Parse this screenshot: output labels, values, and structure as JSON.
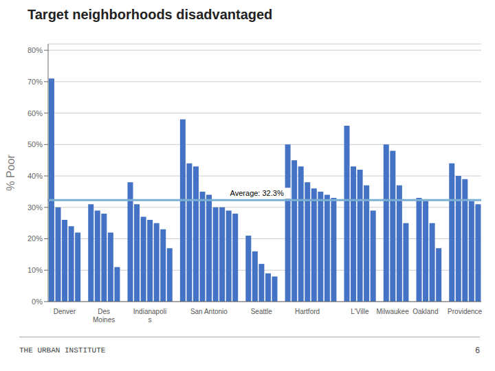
{
  "chart_data": {
    "type": "bar",
    "title": "Target neighborhoods disadvantaged",
    "ylabel": "% Poor",
    "color": "#4472C4",
    "grid": true,
    "ylim": [
      0,
      82
    ],
    "yticks": [
      {
        "value": 0,
        "label": "0%"
      },
      {
        "value": 10,
        "label": "10%"
      },
      {
        "value": 20,
        "label": "20%"
      },
      {
        "value": 30,
        "label": "30%"
      },
      {
        "value": 40,
        "label": "40%"
      },
      {
        "value": 50,
        "label": "50%"
      },
      {
        "value": 60,
        "label": "60%"
      },
      {
        "value": 70,
        "label": "70%"
      },
      {
        "value": 80,
        "label": "80%"
      }
    ],
    "categories": [
      null,
      null,
      "Denver",
      null,
      null,
      null,
      null,
      null,
      "Des\nMoines",
      null,
      null,
      null,
      null,
      null,
      null,
      "Indianapoli\ns",
      null,
      null,
      null,
      null,
      null,
      null,
      null,
      null,
      "San Antonio",
      null,
      null,
      null,
      null,
      null,
      null,
      null,
      "Seattle",
      null,
      null,
      null,
      null,
      null,
      null,
      "Hartford",
      null,
      null,
      null,
      null,
      null,
      null,
      null,
      "L'Ville",
      null,
      null,
      null,
      null,
      "Milwaukee",
      null,
      null,
      null,
      null,
      "Oakland",
      null,
      null,
      null,
      null,
      null,
      "Providence",
      null,
      null
    ],
    "values": [
      71,
      30,
      26,
      24,
      22,
      null,
      31,
      29,
      28,
      22,
      11,
      null,
      38,
      31,
      27,
      26,
      25,
      23,
      17,
      null,
      58,
      44,
      43,
      35,
      34,
      30,
      30,
      29,
      28,
      null,
      21,
      16,
      12,
      9,
      8,
      null,
      50,
      45,
      43,
      38,
      36,
      35,
      34,
      33,
      null,
      56,
      43,
      42,
      37,
      29,
      null,
      50,
      48,
      37,
      25,
      null,
      33,
      32,
      25,
      17,
      null,
      44,
      40,
      39,
      32,
      31
    ],
    "annotations": [
      {
        "type": "hline",
        "y": 32.3,
        "label": "Average: 32.3%",
        "color": "#7BAFD4"
      },
      {
        "text": "THE URBAN INSTITUTE"
      },
      {
        "text": "6"
      }
    ]
  }
}
